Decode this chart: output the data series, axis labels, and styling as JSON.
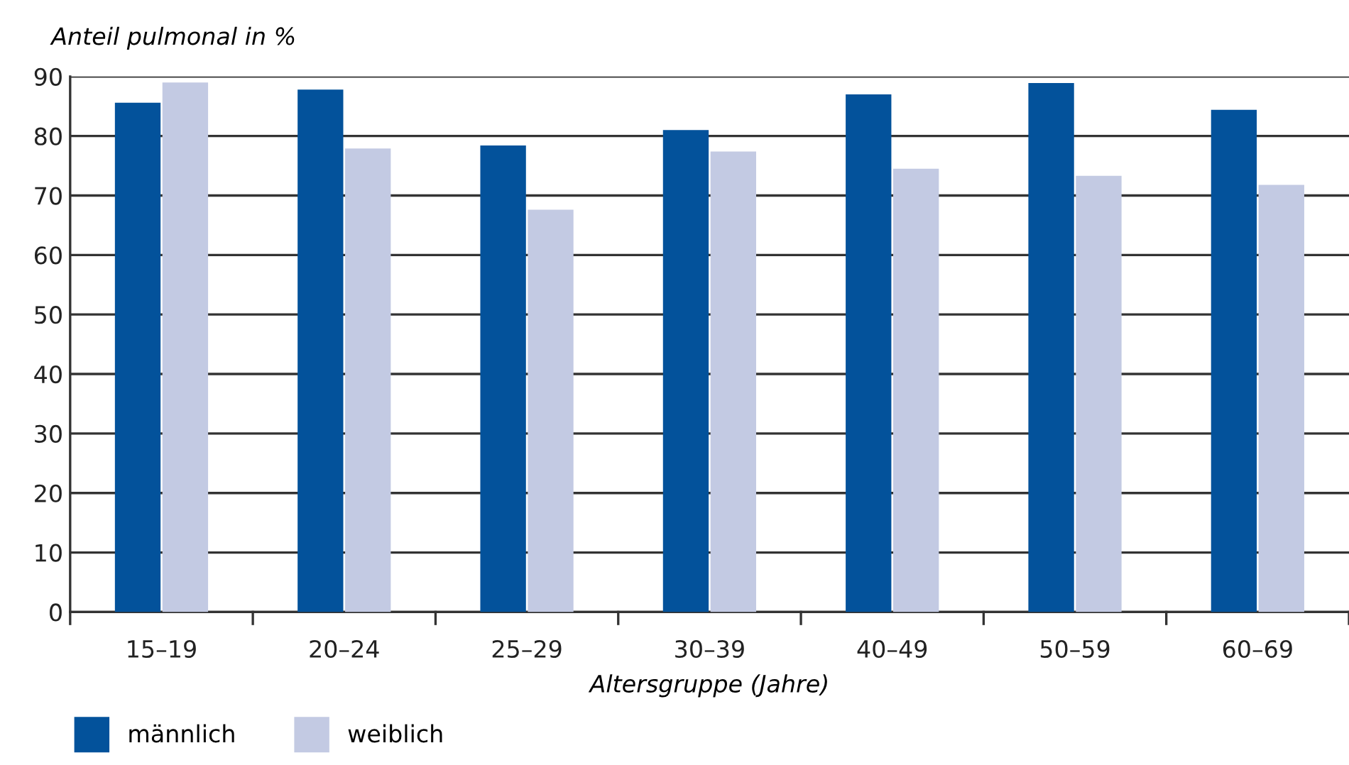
{
  "chart_data": {
    "type": "bar",
    "ylabel": "Anteil pulmonal in %",
    "xlabel": "Altersgruppe (Jahre)",
    "categories": [
      "15–19",
      "20–24",
      "25–29",
      "30–39",
      "40–49",
      "50–59",
      "60–69"
    ],
    "series": [
      {
        "name": "männlich",
        "color": "#03529b",
        "values": [
          85.6,
          87.8,
          78.4,
          81.0,
          87.0,
          88.9,
          84.4
        ]
      },
      {
        "name": "weiblich",
        "color": "#c3cae3",
        "values": [
          89.0,
          77.9,
          67.6,
          77.4,
          74.5,
          73.3,
          71.8
        ]
      }
    ],
    "ylim": [
      0,
      90
    ],
    "yticks": [
      0,
      10,
      20,
      30,
      40,
      50,
      60,
      70,
      80,
      90
    ],
    "grid": "y",
    "legend": "bottom left"
  }
}
